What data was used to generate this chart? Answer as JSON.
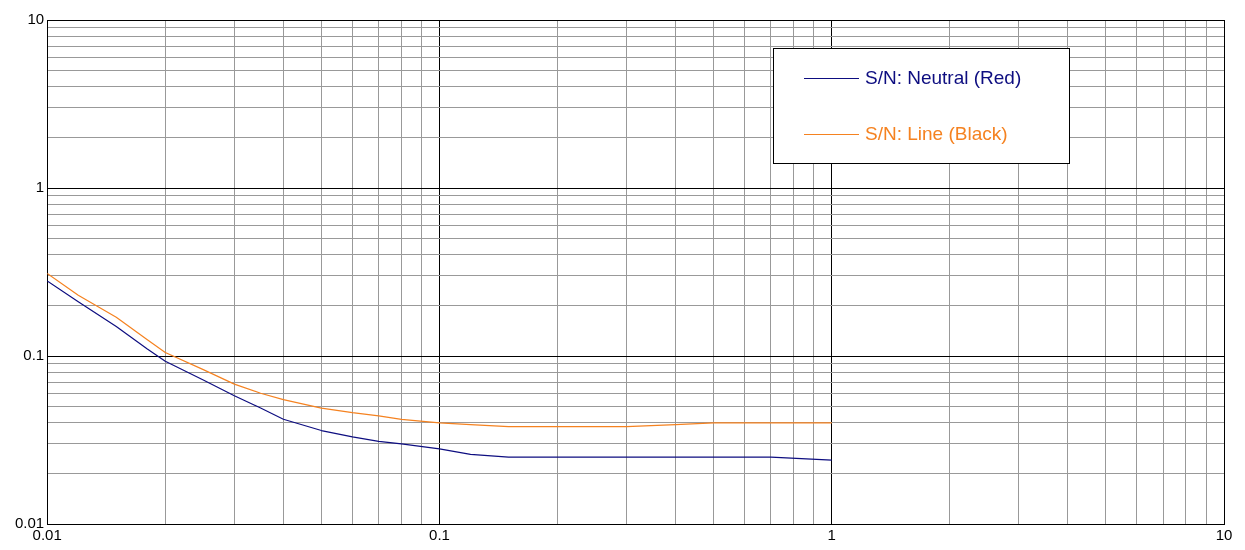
{
  "chart_data": {
    "type": "line",
    "log": "xy",
    "grid": true,
    "legend": "top right",
    "marker": "none",
    "xlim": [
      0.01,
      10
    ],
    "ylim": [
      0.01,
      10
    ],
    "xticks": [
      0.01,
      {
        "value": 0.02,
        "label": null
      },
      {
        "value": 0.03,
        "label": null
      },
      {
        "value": 0.04,
        "label": null
      },
      {
        "value": 0.05,
        "label": null
      },
      {
        "value": 0.06,
        "label": null
      },
      {
        "value": 0.07,
        "label": null
      },
      {
        "value": 0.08,
        "label": null
      },
      {
        "value": 0.09,
        "label": null
      },
      0.1,
      {
        "value": 0.2,
        "label": null
      },
      {
        "value": 0.3,
        "label": null
      },
      {
        "value": 0.4,
        "label": null
      },
      {
        "value": 0.5,
        "label": null
      },
      {
        "value": 0.6,
        "label": null
      },
      {
        "value": 0.7,
        "label": null
      },
      {
        "value": 0.8,
        "label": null
      },
      {
        "value": 0.9,
        "label": null
      },
      1,
      {
        "value": 2,
        "label": null
      },
      {
        "value": 3,
        "label": null
      },
      {
        "value": 4,
        "label": null
      },
      {
        "value": 5,
        "label": null
      },
      {
        "value": 6,
        "label": null
      },
      {
        "value": 7,
        "label": null
      },
      {
        "value": 8,
        "label": null
      },
      {
        "value": 9,
        "label": null
      },
      10
    ],
    "yticks": [
      0.01,
      {
        "value": 0.02,
        "label": null
      },
      {
        "value": 0.03,
        "label": null
      },
      {
        "value": 0.04,
        "label": null
      },
      {
        "value": 0.05,
        "label": null
      },
      {
        "value": 0.06,
        "label": null
      },
      {
        "value": 0.07,
        "label": null
      },
      {
        "value": 0.08,
        "label": null
      },
      {
        "value": 0.09,
        "label": null
      },
      0.1,
      {
        "value": 0.2,
        "label": null
      },
      {
        "value": 0.3,
        "label": null
      },
      {
        "value": 0.4,
        "label": null
      },
      {
        "value": 0.5,
        "label": null
      },
      {
        "value": 0.6,
        "label": null
      },
      {
        "value": 0.7,
        "label": null
      },
      {
        "value": 0.8,
        "label": null
      },
      {
        "value": 0.9,
        "label": null
      },
      1,
      {
        "value": 2,
        "label": null
      },
      {
        "value": 3,
        "label": null
      },
      {
        "value": 4,
        "label": null
      },
      {
        "value": 5,
        "label": null
      },
      {
        "value": 6,
        "label": null
      },
      {
        "value": 7,
        "label": null
      },
      {
        "value": 8,
        "label": null
      },
      {
        "value": 9,
        "label": null
      },
      10
    ],
    "x": [
      0.01,
      0.012,
      0.015,
      0.018,
      0.02,
      0.025,
      0.03,
      0.035,
      0.04,
      0.05,
      0.06,
      0.07,
      0.08,
      0.1,
      0.12,
      0.15,
      0.2,
      0.3,
      0.4,
      0.5,
      0.7,
      1
    ],
    "series": [
      {
        "name": "S/N: Neutral (Red)",
        "color": "#0d0d80",
        "values": [
          0.28,
          0.21,
          0.15,
          0.11,
          0.093,
          0.072,
          0.058,
          0.049,
          0.042,
          0.036,
          0.033,
          0.031,
          0.03,
          0.028,
          0.026,
          0.025,
          0.025,
          0.025,
          0.025,
          0.025,
          0.025,
          0.024
        ]
      },
      {
        "name": "S/N: Line (Black)",
        "color": "#f58220",
        "values": [
          0.31,
          0.23,
          0.17,
          0.125,
          0.105,
          0.083,
          0.068,
          0.06,
          0.055,
          0.049,
          0.046,
          0.044,
          0.042,
          0.04,
          0.039,
          0.038,
          0.038,
          0.038,
          0.039,
          0.04,
          0.04,
          0.04
        ]
      }
    ]
  }
}
